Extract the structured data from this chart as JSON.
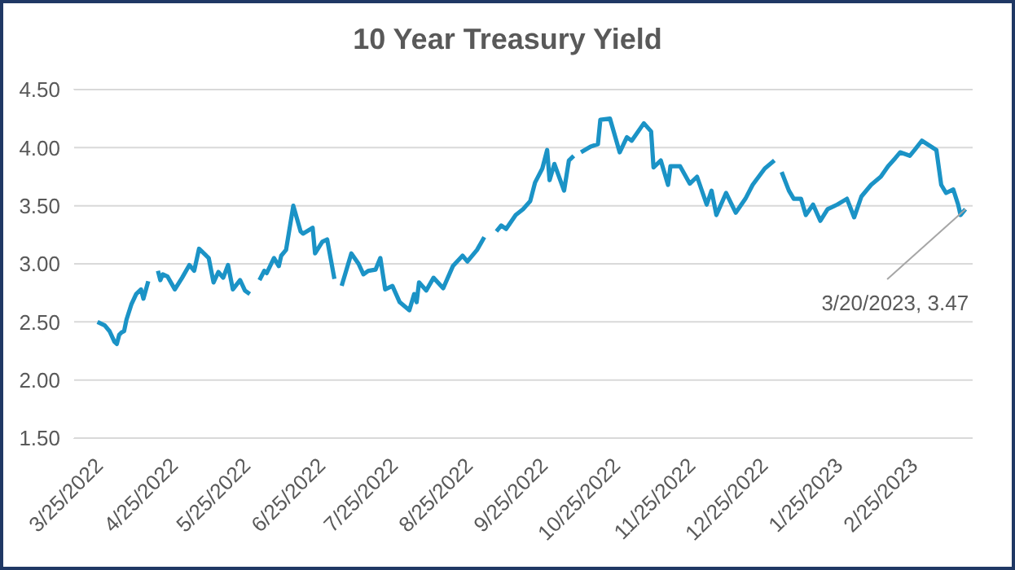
{
  "chart_data": {
    "type": "line",
    "title": "10 Year Treasury Yield",
    "x": [
      "2022-03-26",
      "2022-03-29",
      "2022-03-31",
      "2022-04-02",
      "2022-04-03",
      "2022-04-04",
      "2022-04-05",
      "2022-04-06",
      "2022-04-07",
      "2022-04-09",
      "2022-04-11",
      "2022-04-13",
      "2022-04-14",
      "2022-04-16",
      "2022-04-18",
      "2022-04-20",
      "2022-04-21",
      "2022-04-22",
      "2022-04-24",
      "2022-04-27",
      "2022-04-30",
      "2022-05-03",
      "2022-05-05",
      "2022-05-07",
      "2022-05-11",
      "2022-05-13",
      "2022-05-15",
      "2022-05-17",
      "2022-05-19",
      "2022-05-21",
      "2022-05-24",
      "2022-05-26",
      "2022-05-28",
      "2022-05-30",
      "2022-06-01",
      "2022-06-03",
      "2022-06-04",
      "2022-06-07",
      "2022-06-09",
      "2022-06-10",
      "2022-06-12",
      "2022-06-15",
      "2022-06-18",
      "2022-06-19",
      "2022-06-23",
      "2022-06-24",
      "2022-06-27",
      "2022-06-29",
      "2022-07-02",
      "2022-07-04",
      "2022-07-05",
      "2022-07-09",
      "2022-07-12",
      "2022-07-14",
      "2022-07-16",
      "2022-07-19",
      "2022-07-21",
      "2022-07-23",
      "2022-07-26",
      "2022-07-29",
      "2022-08-02",
      "2022-08-04",
      "2022-08-05",
      "2022-08-06",
      "2022-08-09",
      "2022-08-12",
      "2022-08-16",
      "2022-08-20",
      "2022-08-24",
      "2022-08-26",
      "2022-08-30",
      "2022-09-02",
      "2022-09-04",
      "2022-09-07",
      "2022-09-09",
      "2022-09-11",
      "2022-09-15",
      "2022-09-18",
      "2022-09-21",
      "2022-09-23",
      "2022-09-26",
      "2022-09-28",
      "2022-09-29",
      "2022-10-01",
      "2022-10-05",
      "2022-10-07",
      "2022-10-09",
      "2022-10-10",
      "2022-10-12",
      "2022-10-16",
      "2022-10-19",
      "2022-10-20",
      "2022-10-24",
      "2022-10-28",
      "2022-10-31",
      "2022-11-02",
      "2022-11-07",
      "2022-11-10",
      "2022-11-11",
      "2022-11-14",
      "2022-11-17",
      "2022-11-18",
      "2022-11-22",
      "2022-11-26",
      "2022-11-29",
      "2022-12-03",
      "2022-12-05",
      "2022-12-07",
      "2022-12-11",
      "2022-12-15",
      "2022-12-19",
      "2022-12-22",
      "2022-12-27",
      "2022-12-31",
      "2023-01-02",
      "2023-01-03",
      "2023-01-06",
      "2023-01-08",
      "2023-01-11",
      "2023-01-13",
      "2023-01-16",
      "2023-01-19",
      "2023-01-22",
      "2023-01-26",
      "2023-01-30",
      "2023-02-02",
      "2023-02-05",
      "2023-02-09",
      "2023-02-13",
      "2023-02-16",
      "2023-02-19",
      "2023-02-21",
      "2023-02-25",
      "2023-02-27",
      "2023-03-02",
      "2023-03-08",
      "2023-03-10",
      "2023-03-12",
      "2023-03-15",
      "2023-03-17",
      "2023-03-18",
      "2023-03-20"
    ],
    "series": [
      {
        "color": "#1b93c6",
        "values": [
          2.5,
          2.47,
          2.42,
          2.33,
          2.31,
          2.39,
          2.41,
          2.42,
          2.52,
          2.65,
          2.74,
          2.78,
          2.7,
          2.85,
          null,
          2.94,
          2.86,
          2.91,
          2.89,
          2.78,
          2.88,
          2.99,
          2.94,
          3.13,
          3.05,
          2.84,
          2.93,
          2.88,
          2.99,
          2.78,
          2.86,
          2.77,
          2.74,
          null,
          2.86,
          2.94,
          2.92,
          3.05,
          2.98,
          3.07,
          3.12,
          3.5,
          3.28,
          3.26,
          3.31,
          3.09,
          3.19,
          3.21,
          2.87,
          null,
          2.81,
          3.09,
          3.0,
          2.91,
          2.94,
          2.95,
          3.05,
          2.78,
          2.81,
          2.67,
          2.6,
          2.74,
          2.67,
          2.84,
          2.77,
          2.88,
          2.79,
          2.98,
          3.07,
          3.02,
          3.12,
          3.23,
          null,
          3.28,
          3.33,
          3.3,
          3.42,
          3.47,
          3.54,
          3.7,
          3.82,
          3.98,
          3.72,
          3.86,
          3.63,
          3.89,
          3.93,
          null,
          3.96,
          4.01,
          4.03,
          4.24,
          4.25,
          3.96,
          4.09,
          4.06,
          4.21,
          4.14,
          3.83,
          3.89,
          3.68,
          3.84,
          3.84,
          3.69,
          3.75,
          3.51,
          3.63,
          3.42,
          3.61,
          3.44,
          3.56,
          3.68,
          3.82,
          3.89,
          null,
          3.79,
          3.63,
          3.56,
          3.56,
          3.42,
          3.51,
          3.37,
          3.47,
          3.51,
          3.56,
          3.4,
          3.58,
          3.68,
          3.75,
          3.84,
          3.91,
          3.96,
          3.93,
          3.98,
          4.06,
          3.98,
          3.68,
          3.61,
          3.64,
          3.51,
          3.42,
          3.47
        ]
      }
    ],
    "xlim": [
      "2022-03-16",
      "2023-03-23"
    ],
    "xticks": [
      {
        "value": "2022-03-25",
        "label": "3/25/2022"
      },
      {
        "value": "2022-04-25",
        "label": "4/25/2022"
      },
      {
        "value": "2022-05-25",
        "label": "5/25/2022"
      },
      {
        "value": "2022-06-25",
        "label": "6/25/2022"
      },
      {
        "value": "2022-07-25",
        "label": "7/25/2022"
      },
      {
        "value": "2022-08-25",
        "label": "8/25/2022"
      },
      {
        "value": "2022-09-25",
        "label": "9/25/2022"
      },
      {
        "value": "2022-10-25",
        "label": "10/25/2022"
      },
      {
        "value": "2022-11-25",
        "label": "11/25/2022"
      },
      {
        "value": "2022-12-25",
        "label": "12/25/2022"
      },
      {
        "value": "2023-01-25",
        "label": "1/25/2023"
      },
      {
        "value": "2023-02-25",
        "label": "2/25/2023"
      }
    ],
    "ylim": [
      1.5,
      4.5
    ],
    "yticks": [
      {
        "value": 1.5,
        "label": "1.50"
      },
      {
        "value": 2,
        "label": "2.00"
      },
      {
        "value": 2.5,
        "label": "2.50"
      },
      {
        "value": 3,
        "label": "3.00"
      },
      {
        "value": 3.5,
        "label": "3.50"
      },
      {
        "value": 4,
        "label": "4.00"
      },
      {
        "value": 4.5,
        "label": "4.50"
      }
    ],
    "grid": "y",
    "annotations": [
      {
        "text": "3/20/2023, 3.47",
        "x": "2023-03-20",
        "y": 3.47
      }
    ]
  }
}
